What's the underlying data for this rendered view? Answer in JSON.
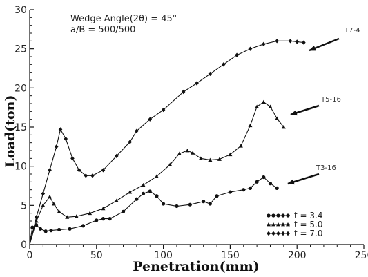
{
  "chart_data": {
    "type": "line",
    "xlabel": "Penetration(mm)",
    "ylabel": "Load(ton)",
    "xlim": [
      0,
      250
    ],
    "ylim": [
      0,
      30
    ],
    "x_ticks": [
      0,
      50,
      100,
      150,
      200,
      250
    ],
    "y_ticks": [
      0,
      5,
      10,
      15,
      20,
      25,
      30
    ],
    "grid": false,
    "annotations": [
      "Wedge Angle(2θ) = 45°",
      "a/B = 500/500"
    ],
    "curve_labels": [
      "T7-4",
      "T5-16",
      "T3-16"
    ],
    "legend_position": "bottom-right",
    "series": [
      {
        "name": "t = 3.4",
        "label": "T3-16",
        "marker": "circle",
        "color": "#111111",
        "x": [
          0,
          2,
          5,
          8,
          12,
          16,
          22,
          30,
          40,
          50,
          55,
          60,
          70,
          80,
          85,
          90,
          95,
          100,
          110,
          120,
          130,
          135,
          140,
          150,
          160,
          165,
          170,
          175,
          180,
          185
        ],
        "y": [
          0,
          2.2,
          2.5,
          2.0,
          1.7,
          1.8,
          1.9,
          2.0,
          2.4,
          3.1,
          3.3,
          3.3,
          4.2,
          5.8,
          6.5,
          6.8,
          6.2,
          5.2,
          4.9,
          5.1,
          5.5,
          5.2,
          6.2,
          6.7,
          7.0,
          7.2,
          8.0,
          8.6,
          7.8,
          7.2
        ]
      },
      {
        "name": "t = 5.0",
        "label": "T5-16",
        "marker": "triangle",
        "color": "#111111",
        "x": [
          0,
          5,
          10,
          15,
          18,
          22,
          28,
          35,
          45,
          55,
          65,
          75,
          85,
          95,
          105,
          112,
          118,
          122,
          128,
          135,
          142,
          150,
          158,
          165,
          170,
          175,
          180,
          185,
          190
        ],
        "y": [
          0,
          3.0,
          5.0,
          6.1,
          5.2,
          4.2,
          3.5,
          3.6,
          4.0,
          4.6,
          5.6,
          6.7,
          7.6,
          8.7,
          10.2,
          11.6,
          12.0,
          11.7,
          11.0,
          10.8,
          10.9,
          11.5,
          12.6,
          15.2,
          17.6,
          18.2,
          17.6,
          16.1,
          15.0
        ]
      },
      {
        "name": "t = 7.0",
        "label": "T7-4",
        "marker": "diamond",
        "color": "#111111",
        "x": [
          0,
          5,
          10,
          15,
          20,
          23,
          27,
          32,
          37,
          42,
          47,
          55,
          65,
          75,
          80,
          90,
          100,
          115,
          125,
          135,
          145,
          155,
          165,
          175,
          185,
          195,
          200,
          205
        ],
        "y": [
          0,
          3.5,
          6.5,
          9.5,
          12.5,
          14.7,
          13.5,
          11.0,
          9.5,
          8.8,
          8.8,
          9.5,
          11.3,
          13.1,
          14.5,
          16.0,
          17.2,
          19.5,
          20.6,
          21.8,
          23.0,
          24.2,
          25.0,
          25.6,
          26.0,
          26.0,
          25.9,
          25.8
        ]
      }
    ]
  }
}
